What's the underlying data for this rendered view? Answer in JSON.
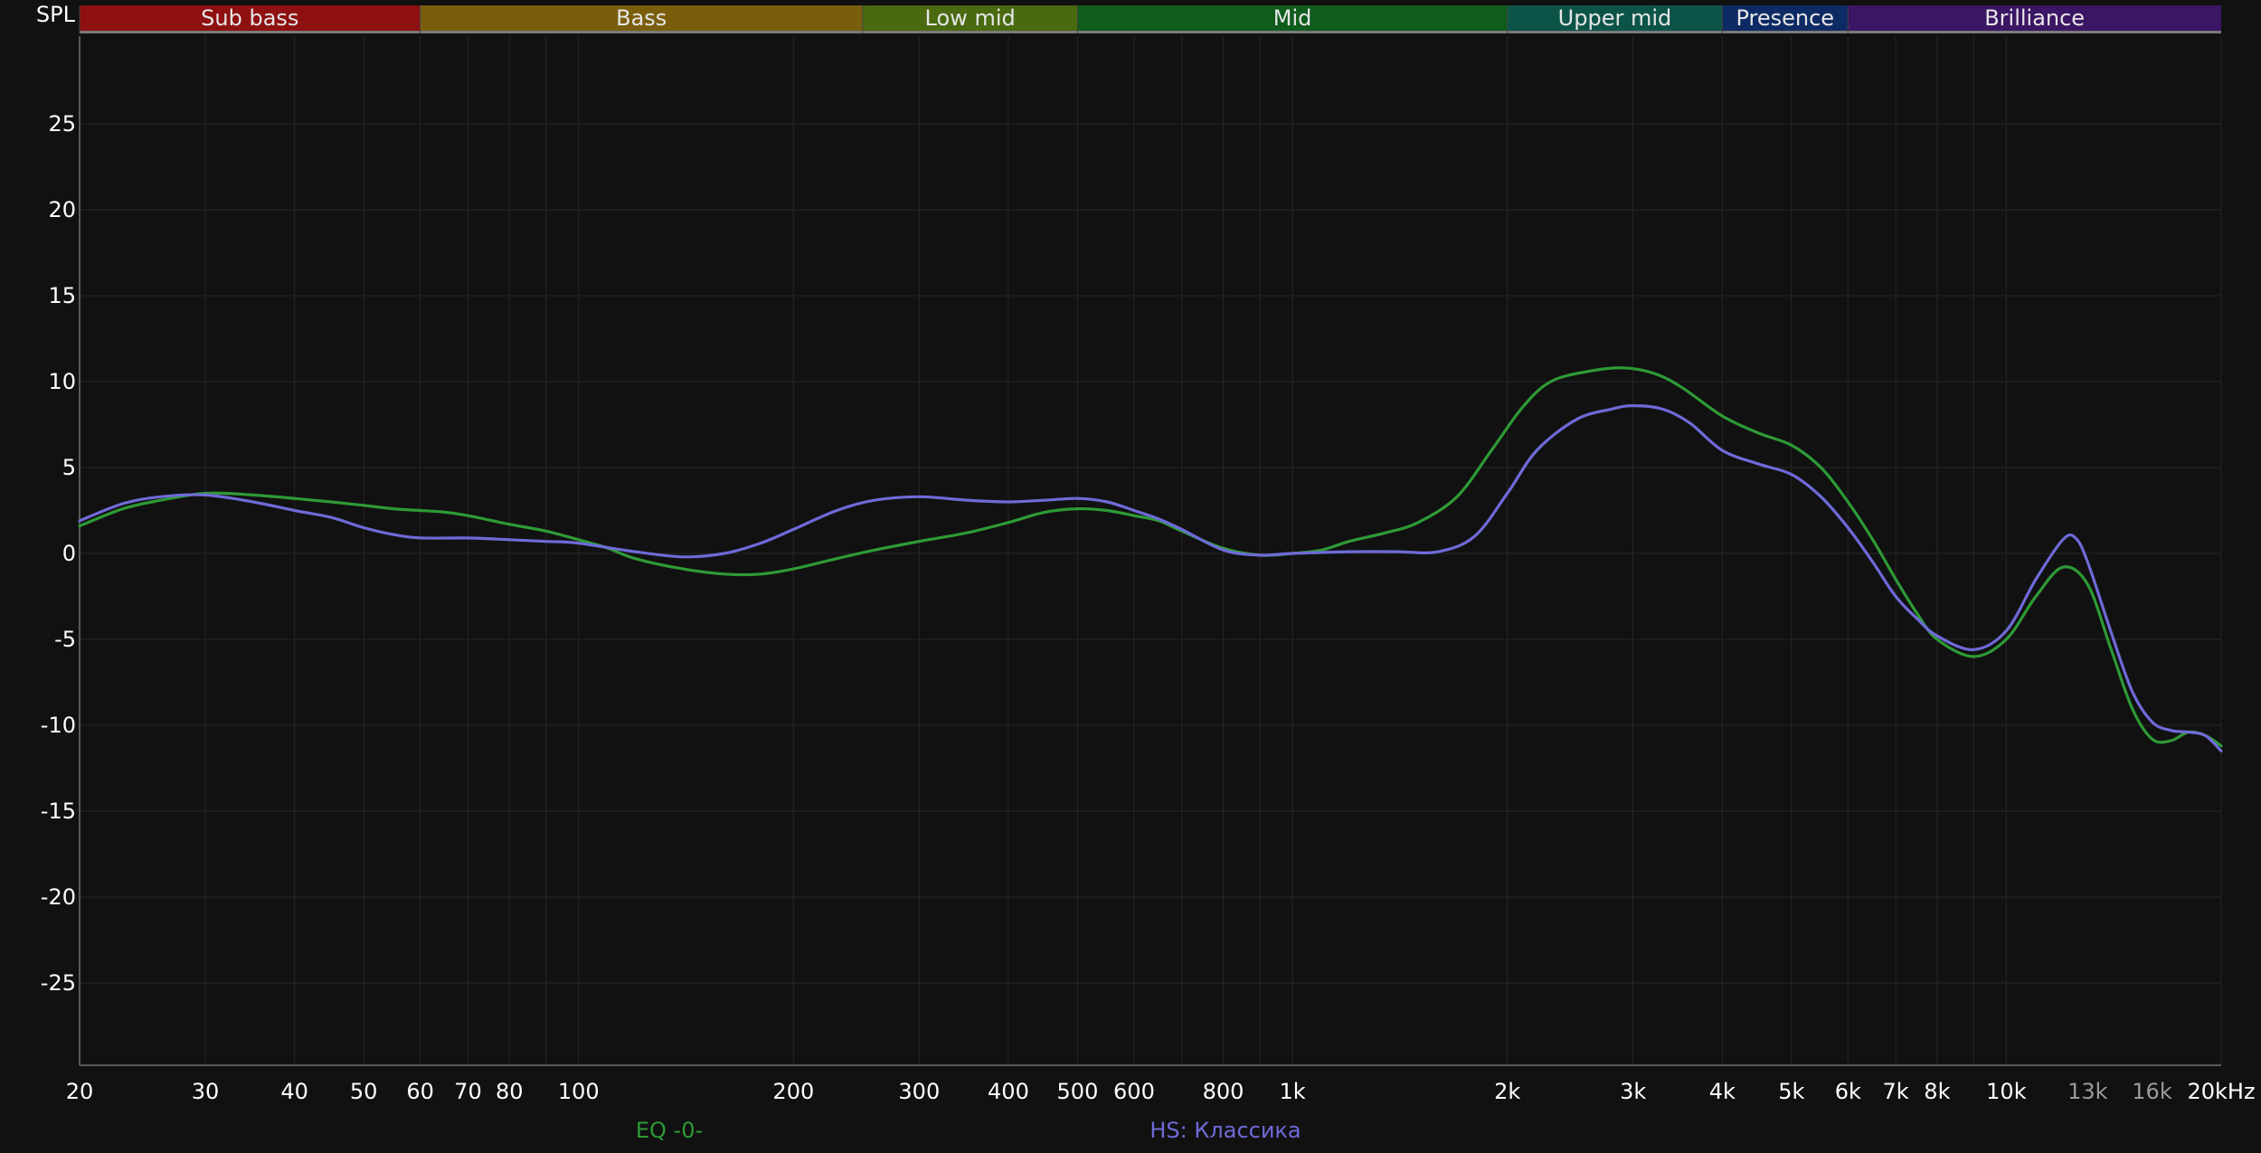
{
  "chart_data": {
    "type": "line",
    "ylabel": "SPL",
    "xunit": "Hz",
    "xscale": "log",
    "xlim": [
      20,
      20000
    ],
    "ylim": [
      -30,
      30
    ],
    "grid": true,
    "y_ticks": [
      25,
      20,
      15,
      10,
      5,
      0,
      -5,
      -10,
      -15,
      -20,
      -25
    ],
    "x_ticks": [
      {
        "value": 20,
        "label": "20"
      },
      {
        "value": 30,
        "label": "30"
      },
      {
        "value": 40,
        "label": "40"
      },
      {
        "value": 50,
        "label": "50"
      },
      {
        "value": 60,
        "label": "60"
      },
      {
        "value": 70,
        "label": "70"
      },
      {
        "value": 80,
        "label": "80"
      },
      {
        "value": 100,
        "label": "100"
      },
      {
        "value": 200,
        "label": "200"
      },
      {
        "value": 300,
        "label": "300"
      },
      {
        "value": 400,
        "label": "400"
      },
      {
        "value": 500,
        "label": "500"
      },
      {
        "value": 600,
        "label": "600"
      },
      {
        "value": 800,
        "label": "800"
      },
      {
        "value": 1000,
        "label": "1k"
      },
      {
        "value": 2000,
        "label": "2k"
      },
      {
        "value": 3000,
        "label": "3k"
      },
      {
        "value": 4000,
        "label": "4k"
      },
      {
        "value": 5000,
        "label": "5k"
      },
      {
        "value": 6000,
        "label": "6k"
      },
      {
        "value": 7000,
        "label": "7k"
      },
      {
        "value": 8000,
        "label": "8k"
      },
      {
        "value": 10000,
        "label": "10k"
      },
      {
        "value": 13000,
        "label": "13k",
        "dim": true
      },
      {
        "value": 16000,
        "label": "16k",
        "dim": true
      },
      {
        "value": 20000,
        "label": "20kHz"
      }
    ],
    "bands": [
      {
        "name": "Sub bass",
        "from": 20,
        "to": 60,
        "color": "#8e1010"
      },
      {
        "name": "Bass",
        "from": 60,
        "to": 250,
        "color": "#7a5e0c"
      },
      {
        "name": "Low mid",
        "from": 250,
        "to": 500,
        "color": "#4a6a10"
      },
      {
        "name": "Mid",
        "from": 500,
        "to": 2000,
        "color": "#0f5c1c"
      },
      {
        "name": "Upper mid",
        "from": 2000,
        "to": 4000,
        "color": "#0c5448"
      },
      {
        "name": "Presence",
        "from": 4000,
        "to": 6000,
        "color": "#0e2a64"
      },
      {
        "name": "Brilliance",
        "from": 6000,
        "to": 20000,
        "color": "#3a1664"
      }
    ],
    "series": [
      {
        "name": "EQ -0-",
        "color": "#2e9a36",
        "points": [
          [
            20,
            1.6
          ],
          [
            23,
            2.6
          ],
          [
            26,
            3.1
          ],
          [
            30,
            3.5
          ],
          [
            35,
            3.4
          ],
          [
            40,
            3.2
          ],
          [
            45,
            3.0
          ],
          [
            50,
            2.8
          ],
          [
            55,
            2.6
          ],
          [
            60,
            2.5
          ],
          [
            65,
            2.4
          ],
          [
            70,
            2.2
          ],
          [
            80,
            1.7
          ],
          [
            90,
            1.3
          ],
          [
            100,
            0.8
          ],
          [
            110,
            0.3
          ],
          [
            120,
            -0.3
          ],
          [
            140,
            -0.9
          ],
          [
            160,
            -1.2
          ],
          [
            180,
            -1.2
          ],
          [
            200,
            -0.9
          ],
          [
            230,
            -0.3
          ],
          [
            260,
            0.2
          ],
          [
            300,
            0.7
          ],
          [
            350,
            1.2
          ],
          [
            400,
            1.8
          ],
          [
            450,
            2.4
          ],
          [
            500,
            2.6
          ],
          [
            550,
            2.5
          ],
          [
            600,
            2.2
          ],
          [
            650,
            1.9
          ],
          [
            700,
            1.3
          ],
          [
            800,
            0.3
          ],
          [
            900,
            -0.1
          ],
          [
            1000,
            0.0
          ],
          [
            1100,
            0.2
          ],
          [
            1200,
            0.7
          ],
          [
            1350,
            1.2
          ],
          [
            1500,
            1.8
          ],
          [
            1700,
            3.3
          ],
          [
            1900,
            6.0
          ],
          [
            2100,
            8.5
          ],
          [
            2300,
            10.0
          ],
          [
            2600,
            10.6
          ],
          [
            2900,
            10.8
          ],
          [
            3200,
            10.5
          ],
          [
            3500,
            9.7
          ],
          [
            4000,
            8.0
          ],
          [
            4500,
            7.0
          ],
          [
            5000,
            6.3
          ],
          [
            5500,
            5.0
          ],
          [
            6000,
            3.0
          ],
          [
            6500,
            0.8
          ],
          [
            7000,
            -1.5
          ],
          [
            7500,
            -3.5
          ],
          [
            8000,
            -5.0
          ],
          [
            9000,
            -6.0
          ],
          [
            10000,
            -5.0
          ],
          [
            11000,
            -2.5
          ],
          [
            12000,
            -0.8
          ],
          [
            13000,
            -1.8
          ],
          [
            14000,
            -5.5
          ],
          [
            15000,
            -9.0
          ],
          [
            16000,
            -10.8
          ],
          [
            17000,
            -10.9
          ],
          [
            18000,
            -10.4
          ],
          [
            19000,
            -10.6
          ],
          [
            20000,
            -11.2
          ]
        ]
      },
      {
        "name": "HS: Классика",
        "color": "#6f6ad8",
        "points": [
          [
            20,
            1.9
          ],
          [
            23,
            2.9
          ],
          [
            26,
            3.3
          ],
          [
            30,
            3.4
          ],
          [
            35,
            3.0
          ],
          [
            40,
            2.5
          ],
          [
            45,
            2.1
          ],
          [
            50,
            1.5
          ],
          [
            55,
            1.1
          ],
          [
            60,
            0.9
          ],
          [
            70,
            0.9
          ],
          [
            80,
            0.8
          ],
          [
            90,
            0.7
          ],
          [
            100,
            0.6
          ],
          [
            120,
            0.1
          ],
          [
            140,
            -0.2
          ],
          [
            160,
            0.0
          ],
          [
            180,
            0.6
          ],
          [
            200,
            1.4
          ],
          [
            230,
            2.5
          ],
          [
            260,
            3.1
          ],
          [
            300,
            3.3
          ],
          [
            350,
            3.1
          ],
          [
            400,
            3.0
          ],
          [
            450,
            3.1
          ],
          [
            500,
            3.2
          ],
          [
            550,
            3.0
          ],
          [
            600,
            2.5
          ],
          [
            650,
            2.0
          ],
          [
            700,
            1.4
          ],
          [
            800,
            0.2
          ],
          [
            900,
            -0.1
          ],
          [
            1000,
            0.0
          ],
          [
            1200,
            0.1
          ],
          [
            1400,
            0.1
          ],
          [
            1600,
            0.1
          ],
          [
            1800,
            1.0
          ],
          [
            2000,
            3.5
          ],
          [
            2200,
            6.0
          ],
          [
            2500,
            7.8
          ],
          [
            2800,
            8.4
          ],
          [
            3000,
            8.6
          ],
          [
            3300,
            8.4
          ],
          [
            3600,
            7.6
          ],
          [
            4000,
            6.0
          ],
          [
            4500,
            5.2
          ],
          [
            5000,
            4.6
          ],
          [
            5500,
            3.3
          ],
          [
            6000,
            1.5
          ],
          [
            6500,
            -0.5
          ],
          [
            7000,
            -2.5
          ],
          [
            7500,
            -3.8
          ],
          [
            8000,
            -4.8
          ],
          [
            9000,
            -5.6
          ],
          [
            10000,
            -4.5
          ],
          [
            11000,
            -1.5
          ],
          [
            12000,
            0.8
          ],
          [
            12500,
            0.9
          ],
          [
            13000,
            -0.5
          ],
          [
            14000,
            -4.5
          ],
          [
            15000,
            -8.0
          ],
          [
            16000,
            -9.8
          ],
          [
            17000,
            -10.3
          ],
          [
            18000,
            -10.4
          ],
          [
            19000,
            -10.6
          ],
          [
            20000,
            -11.5
          ]
        ]
      }
    ]
  }
}
